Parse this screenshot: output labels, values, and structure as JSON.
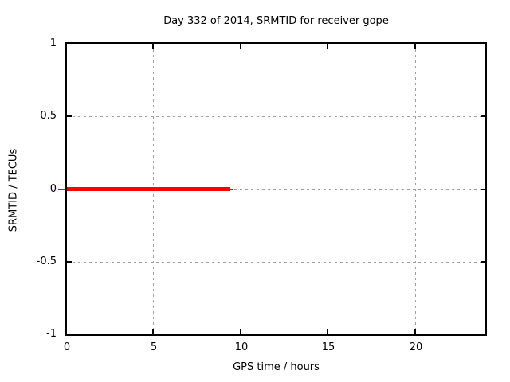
{
  "chart_data": {
    "type": "line",
    "title": "Day 332 of 2014, SRMTID for receiver gope",
    "xlabel": "GPS time / hours",
    "ylabel": "SRMTID / TECUs",
    "xlim": [
      0,
      24
    ],
    "ylim": [
      -1,
      1
    ],
    "grid": {
      "enabled": true,
      "style": "dashed",
      "color": "#9e9e9e"
    },
    "border_color": "#000000",
    "legend": "none",
    "x_ticks": [
      {
        "value": 0,
        "label": "0"
      },
      {
        "value": 5,
        "label": "5"
      },
      {
        "value": 10,
        "label": "10"
      },
      {
        "value": 15,
        "label": "15"
      },
      {
        "value": 20,
        "label": "20"
      }
    ],
    "y_ticks": [
      {
        "value": 1,
        "label": "1"
      },
      {
        "value": 0.5,
        "label": "0.5"
      },
      {
        "value": 0,
        "label": "0"
      },
      {
        "value": -0.5,
        "label": "-0.5"
      },
      {
        "value": -1,
        "label": "-1"
      }
    ],
    "series": [
      {
        "name": "SRMTID",
        "color": "#ff0000",
        "y_value": 0,
        "x_start": 0,
        "x_end": 9.4,
        "segments": [
          {
            "x1": -0.5,
            "x2": 0.0,
            "y": 0,
            "thickness": 2
          },
          {
            "x1": 0.0,
            "x2": 9.37,
            "y": 0,
            "thickness": 5
          },
          {
            "x1": 9.37,
            "x2": 9.55,
            "y": 0,
            "thickness": 2
          }
        ]
      }
    ]
  }
}
